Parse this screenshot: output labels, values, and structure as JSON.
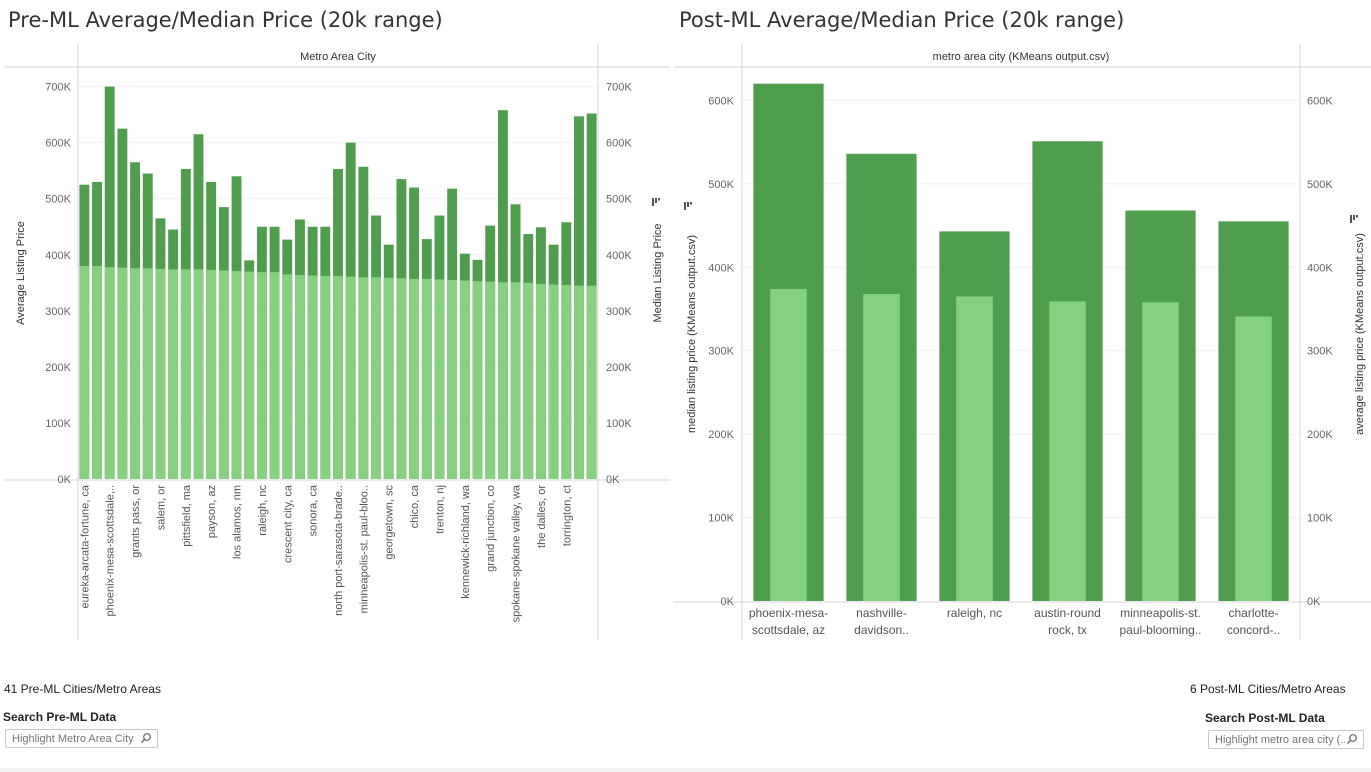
{
  "left": {
    "title": "Pre-ML Average/Median Price (20k range)",
    "count_label": "41 Pre-ML Cities/Metro Areas",
    "search_label": "Search Pre-ML Data",
    "search_placeholder": "Highlight Metro Area City"
  },
  "right": {
    "title": "Post-ML Average/Median Price (20k range)",
    "count_label": "6 Post-ML Cities/Metro Areas",
    "search_label": "Search Post-ML Data",
    "search_placeholder": "Highlight metro area city (..."
  },
  "colors": {
    "average": "#4e9e4e",
    "median": "#87d07f",
    "axis": "#d6d6d6",
    "tick": "#666666"
  },
  "chart_data": [
    {
      "type": "bar",
      "header": "Metro Area City",
      "ylabel_left": "Average Listing Price",
      "ylabel_right": "Median Listing Price",
      "y_ticks": [
        "0K",
        "100K",
        "200K",
        "300K",
        "400K",
        "500K",
        "600K",
        "700K"
      ],
      "ylim": [
        0,
        735000
      ],
      "x_tick_labels": [
        "eureka-arcata-fortune, ca",
        "phoenix-mesa-scottsdale,..",
        "grants pass, or",
        "salem, or",
        "pittsfield, ma",
        "payson, az",
        "los alamos, nm",
        "raleigh, nc",
        "crescent city, ca",
        "sonora, ca",
        "north port-sarasota-brade..",
        "minneapolis-st. paul-bloo..",
        "georgetown, sc",
        "chico, ca",
        "trenton, nj",
        "kennewick-richland, wa",
        "grand junction, co",
        "spokane-spokane valley, wa",
        "the dalles, or",
        "torrington, ct"
      ],
      "n_bars": 41,
      "series": [
        {
          "name": "Average Listing Price",
          "values": [
            525000,
            530000,
            700000,
            625000,
            565000,
            545000,
            465000,
            445000,
            553000,
            615000,
            530000,
            485000,
            540000,
            390000,
            450000,
            450000,
            427000,
            463000,
            450000,
            450000,
            553000,
            600000,
            557000,
            470000,
            418000,
            535000,
            520000,
            428000,
            470000,
            518000,
            402000,
            391000,
            452000,
            658000,
            490000,
            437000,
            449000,
            418000,
            458000,
            647000,
            652000
          ]
        },
        {
          "name": "Median Listing Price",
          "values": [
            380000,
            380000,
            378000,
            377000,
            376000,
            376000,
            375000,
            374000,
            374000,
            374000,
            373000,
            372000,
            371000,
            370000,
            369000,
            369000,
            365000,
            364000,
            363000,
            362000,
            362000,
            361000,
            360000,
            360000,
            359000,
            358000,
            357000,
            357000,
            356000,
            355000,
            354000,
            353000,
            352000,
            351000,
            351000,
            350000,
            348000,
            347000,
            346000,
            345000,
            345000
          ]
        }
      ]
    },
    {
      "type": "bar",
      "header": "metro area city (KMeans output.csv)",
      "ylabel_left": "median listing price (KMeans output.csv)",
      "ylabel_right": "average listing price (KMeans output.csv)",
      "y_ticks": [
        "0K",
        "100K",
        "200K",
        "300K",
        "400K",
        "500K",
        "600K"
      ],
      "ylim": [
        0,
        640000
      ],
      "categories": [
        [
          "phoenix-mesa-",
          "scottsdale, az"
        ],
        [
          "nashville-",
          "davidson.."
        ],
        [
          "raleigh, nc"
        ],
        [
          "austin-round",
          "rock, tx"
        ],
        [
          "minneapolis-st.",
          "paul-blooming.."
        ],
        [
          "charlotte-",
          "concord-.."
        ]
      ],
      "series": [
        {
          "name": "average listing price",
          "values": [
            620000,
            536000,
            443000,
            551000,
            468000,
            455000
          ]
        },
        {
          "name": "median listing price",
          "values": [
            374000,
            368000,
            365000,
            359000,
            358000,
            341000
          ]
        }
      ]
    }
  ]
}
